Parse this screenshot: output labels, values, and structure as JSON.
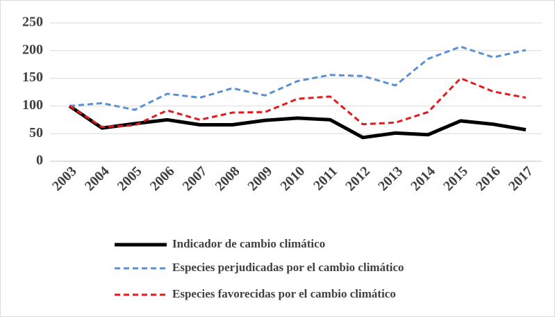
{
  "chart_data": {
    "type": "line",
    "categories": [
      "2003",
      "2004",
      "2005",
      "2006",
      "2007",
      "2008",
      "2009",
      "2010",
      "2011",
      "2012",
      "2013",
      "2014",
      "2015",
      "2016",
      "2017"
    ],
    "series": [
      {
        "name": "Indicador de cambio climático",
        "color": "#000000",
        "dash": "solid",
        "values": [
          100,
          60,
          68,
          75,
          66,
          66,
          74,
          78,
          75,
          43,
          51,
          48,
          73,
          67,
          57
        ]
      },
      {
        "name": "Especies perjudicadas por el cambio climático",
        "color": "#5b8fd4",
        "dash": "dashed",
        "values": [
          100,
          105,
          93,
          122,
          115,
          132,
          119,
          145,
          156,
          154,
          137,
          185,
          207,
          188,
          201
        ]
      },
      {
        "name": "Especies favorecidas por el cambio climático",
        "color": "#e31a1c",
        "dash": "dashed",
        "values": [
          100,
          62,
          65,
          92,
          75,
          88,
          89,
          113,
          117,
          67,
          70,
          89,
          150,
          126,
          115
        ]
      }
    ],
    "ylim": [
      0,
      250
    ],
    "yticks": [
      0,
      50,
      100,
      150,
      200,
      250
    ],
    "grid": true,
    "legend": "bottom"
  }
}
